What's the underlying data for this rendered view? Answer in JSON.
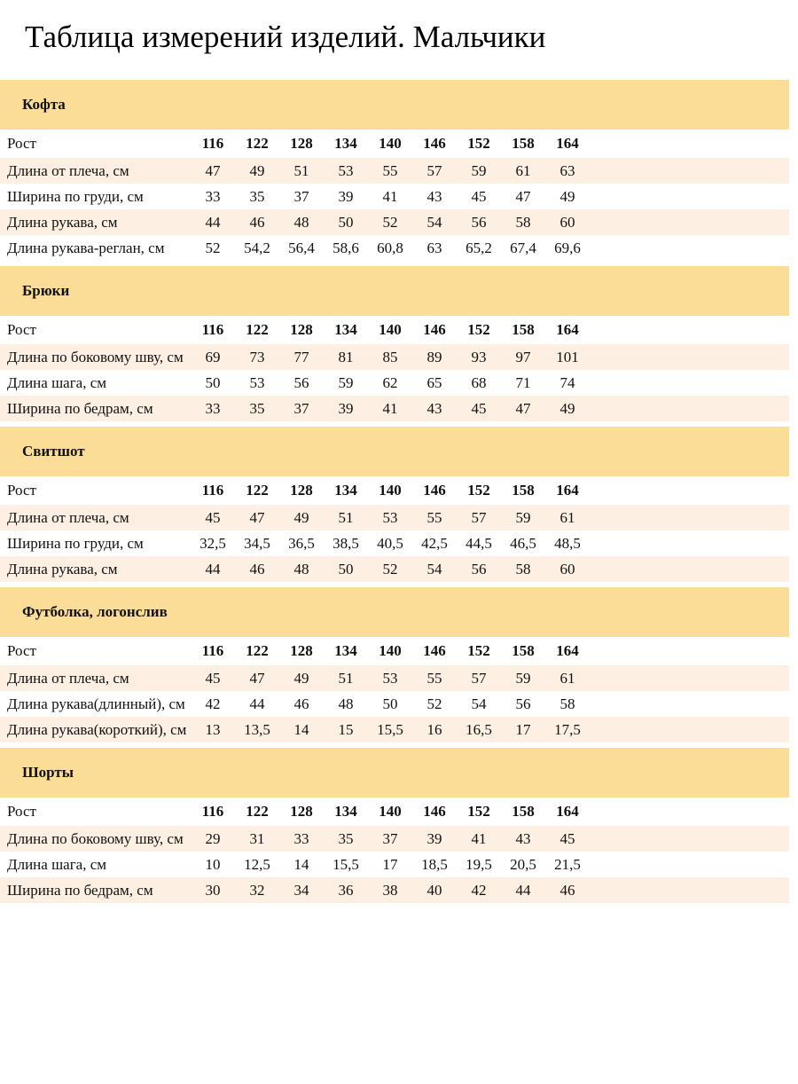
{
  "page": {
    "title": "Таблица измерений изделий. Мальчики"
  },
  "colors": {
    "band_yellow": "#FBDD97",
    "row_cream": "#FDF0E2",
    "row_white": "#FFFFFF",
    "text": "#111111"
  },
  "size_header_label": "Рост",
  "sizes": [
    "116",
    "122",
    "128",
    "134",
    "140",
    "146",
    "152",
    "158",
    "164"
  ],
  "sections": [
    {
      "title": "Кофта",
      "rows": [
        {
          "label": "Длина от плеча, см",
          "values": [
            "47",
            "49",
            "51",
            "53",
            "55",
            "57",
            "59",
            "61",
            "63"
          ]
        },
        {
          "label": "Ширина по груди, см",
          "values": [
            "33",
            "35",
            "37",
            "39",
            "41",
            "43",
            "45",
            "47",
            "49"
          ]
        },
        {
          "label": "Длина рукава, см",
          "values": [
            "44",
            "46",
            "48",
            "50",
            "52",
            "54",
            "56",
            "58",
            "60"
          ]
        },
        {
          "label": "Длина рукава-реглан, см",
          "values": [
            "52",
            "54,2",
            "56,4",
            "58,6",
            "60,8",
            "63",
            "65,2",
            "67,4",
            "69,6"
          ]
        }
      ]
    },
    {
      "title": "Брюки",
      "rows": [
        {
          "label": "Длина по боковому шву, см",
          "values": [
            "69",
            "73",
            "77",
            "81",
            "85",
            "89",
            "93",
            "97",
            "101"
          ]
        },
        {
          "label": "Длина шага, см",
          "values": [
            "50",
            "53",
            "56",
            "59",
            "62",
            "65",
            "68",
            "71",
            "74"
          ]
        },
        {
          "label": "Ширина по бедрам, см",
          "values": [
            "33",
            "35",
            "37",
            "39",
            "41",
            "43",
            "45",
            "47",
            "49"
          ]
        }
      ]
    },
    {
      "title": "Свитшот",
      "rows": [
        {
          "label": "Длина от плеча, см",
          "values": [
            "45",
            "47",
            "49",
            "51",
            "53",
            "55",
            "57",
            "59",
            "61"
          ]
        },
        {
          "label": "Ширина по груди, см",
          "values": [
            "32,5",
            "34,5",
            "36,5",
            "38,5",
            "40,5",
            "42,5",
            "44,5",
            "46,5",
            "48,5"
          ]
        },
        {
          "label": "Длина рукава, см",
          "values": [
            "44",
            "46",
            "48",
            "50",
            "52",
            "54",
            "56",
            "58",
            "60"
          ]
        }
      ]
    },
    {
      "title": "Футболка, логонслив",
      "rows": [
        {
          "label": "Длина от плеча, см",
          "values": [
            "45",
            "47",
            "49",
            "51",
            "53",
            "55",
            "57",
            "59",
            "61"
          ]
        },
        {
          "label": "Длина рукава(длинный), см",
          "values": [
            "42",
            "44",
            "46",
            "48",
            "50",
            "52",
            "54",
            "56",
            "58"
          ]
        },
        {
          "label": "Длина рукава(короткий), см",
          "values": [
            "13",
            "13,5",
            "14",
            "15",
            "15,5",
            "16",
            "16,5",
            "17",
            "17,5"
          ]
        }
      ]
    },
    {
      "title": "Шорты",
      "rows": [
        {
          "label": "Длина по боковому шву, см",
          "values": [
            "29",
            "31",
            "33",
            "35",
            "37",
            "39",
            "41",
            "43",
            "45"
          ]
        },
        {
          "label": "Длина шага, см",
          "values": [
            "10",
            "12,5",
            "14",
            "15,5",
            "17",
            "18,5",
            "19,5",
            "20,5",
            "21,5"
          ]
        },
        {
          "label": "Ширина по бедрам, см",
          "values": [
            "30",
            "32",
            "34",
            "36",
            "38",
            "40",
            "42",
            "44",
            "46"
          ]
        }
      ]
    }
  ]
}
